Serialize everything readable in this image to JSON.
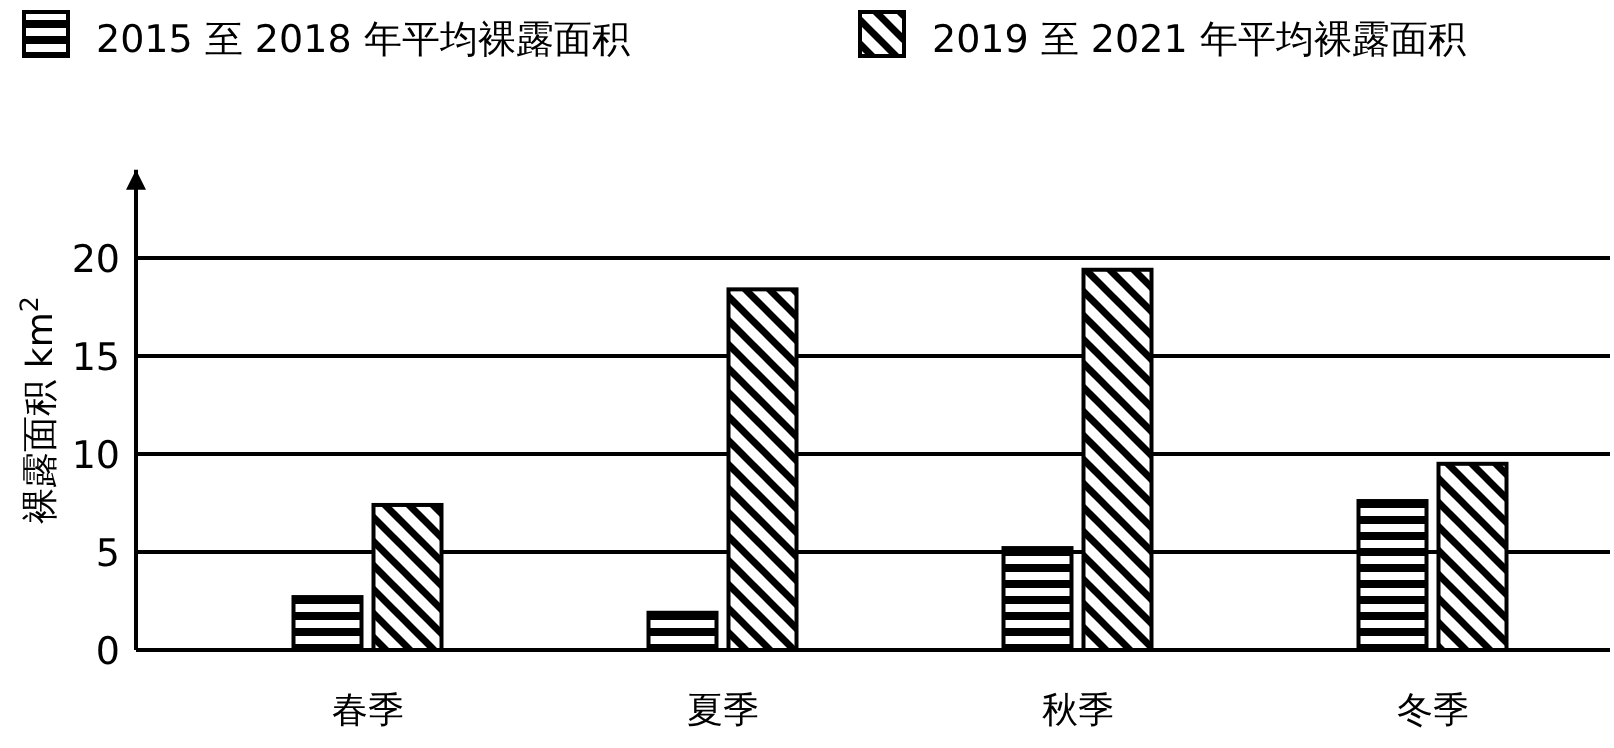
{
  "chart_data": {
    "type": "bar",
    "ylabel": "裸露面积 km$^{2}$",
    "categories": [
      "春季",
      "夏季",
      "秋季",
      "冬季"
    ],
    "series": [
      {
        "name": "2015 至 2018 年平均裸露面积",
        "color": "#000000",
        "values": [
          2.7,
          1.9,
          5.2,
          7.6
        ]
      },
      {
        "name": "2019 至 2021 年平均裸露面积",
        "color": "#000000",
        "values": [
          7.4,
          18.4,
          19.4,
          9.5
        ]
      }
    ],
    "ylim": [
      0,
      24.5
    ],
    "yticks": [
      0,
      5,
      10,
      15,
      20
    ],
    "grid": "y",
    "legend": "top"
  }
}
